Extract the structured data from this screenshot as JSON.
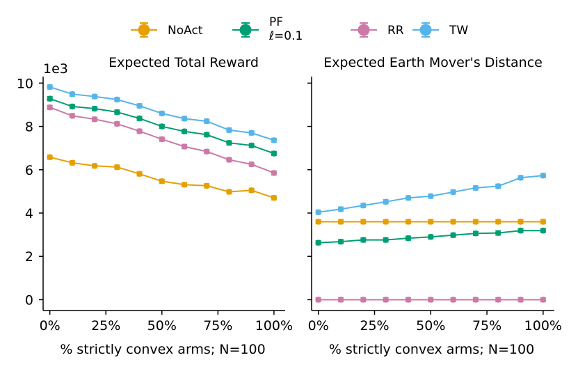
{
  "legend": [
    {
      "name": "NoAct",
      "color": "#E69F00"
    },
    {
      "name": "PF",
      "sub": "ℓ=0.1",
      "color": "#009E73"
    },
    {
      "name": "RR",
      "color": "#CC79A7"
    },
    {
      "name": "TW",
      "color": "#56B4E9"
    }
  ],
  "chart_data": [
    {
      "type": "line",
      "title": "Expected Total Reward",
      "xlabel": "% strictly convex arms; N=100",
      "ylabel": "",
      "offset_label": "1e3",
      "x": [
        0,
        10,
        20,
        30,
        40,
        50,
        60,
        70,
        80,
        90,
        100
      ],
      "xlim": [
        -3,
        105
      ],
      "ylim": [
        -0.5,
        10.3
      ],
      "xticks": [
        0,
        25,
        50,
        75,
        100
      ],
      "xtick_labels": [
        "0%",
        "25%",
        "50%",
        "75%",
        "100%"
      ],
      "yticks": [
        0,
        2,
        4,
        6,
        8,
        10
      ],
      "ytick_labels": [
        "0",
        "2",
        "4",
        "6",
        "8",
        "10"
      ],
      "series": [
        {
          "name": "NoAct",
          "values": [
            6.58,
            6.32,
            6.18,
            6.12,
            5.81,
            5.47,
            5.31,
            5.26,
            4.98,
            5.05,
            4.7
          ]
        },
        {
          "name": "PF",
          "values": [
            9.28,
            8.92,
            8.82,
            8.66,
            8.37,
            8.0,
            7.77,
            7.62,
            7.24,
            7.12,
            6.75
          ]
        },
        {
          "name": "RR",
          "values": [
            8.88,
            8.49,
            8.33,
            8.12,
            7.78,
            7.41,
            7.07,
            6.84,
            6.46,
            6.25,
            5.85
          ]
        },
        {
          "name": "TW",
          "values": [
            9.82,
            9.49,
            9.38,
            9.24,
            8.95,
            8.6,
            8.36,
            8.24,
            7.83,
            7.7,
            7.36
          ]
        }
      ]
    },
    {
      "type": "line",
      "title": "Expected Earth Mover's Distance",
      "xlabel": "% strictly convex arms; N=100",
      "ylabel": "",
      "x": [
        0,
        10,
        20,
        30,
        40,
        50,
        60,
        70,
        80,
        90,
        100
      ],
      "xlim": [
        -3,
        105
      ],
      "ylim": [
        -0.5,
        10.3
      ],
      "xticks": [
        0,
        25,
        50,
        75,
        100
      ],
      "xtick_labels": [
        "0%",
        "25%",
        "50%",
        "75%",
        "100%"
      ],
      "yticks": [
        0,
        2,
        4,
        6,
        8,
        10
      ],
      "ytick_labels": [],
      "series": [
        {
          "name": "NoAct",
          "values": [
            3.6,
            3.6,
            3.6,
            3.6,
            3.6,
            3.6,
            3.6,
            3.6,
            3.6,
            3.6,
            3.6
          ]
        },
        {
          "name": "PF",
          "values": [
            2.63,
            2.68,
            2.76,
            2.76,
            2.84,
            2.9,
            2.98,
            3.06,
            3.08,
            3.19,
            3.19
          ]
        },
        {
          "name": "RR",
          "values": [
            0.0,
            0.0,
            0.0,
            0.0,
            0.0,
            0.0,
            0.0,
            0.0,
            0.0,
            0.0,
            0.0
          ]
        },
        {
          "name": "TW",
          "values": [
            4.04,
            4.18,
            4.35,
            4.52,
            4.7,
            4.78,
            4.97,
            5.16,
            5.24,
            5.63,
            5.73
          ]
        }
      ]
    }
  ]
}
